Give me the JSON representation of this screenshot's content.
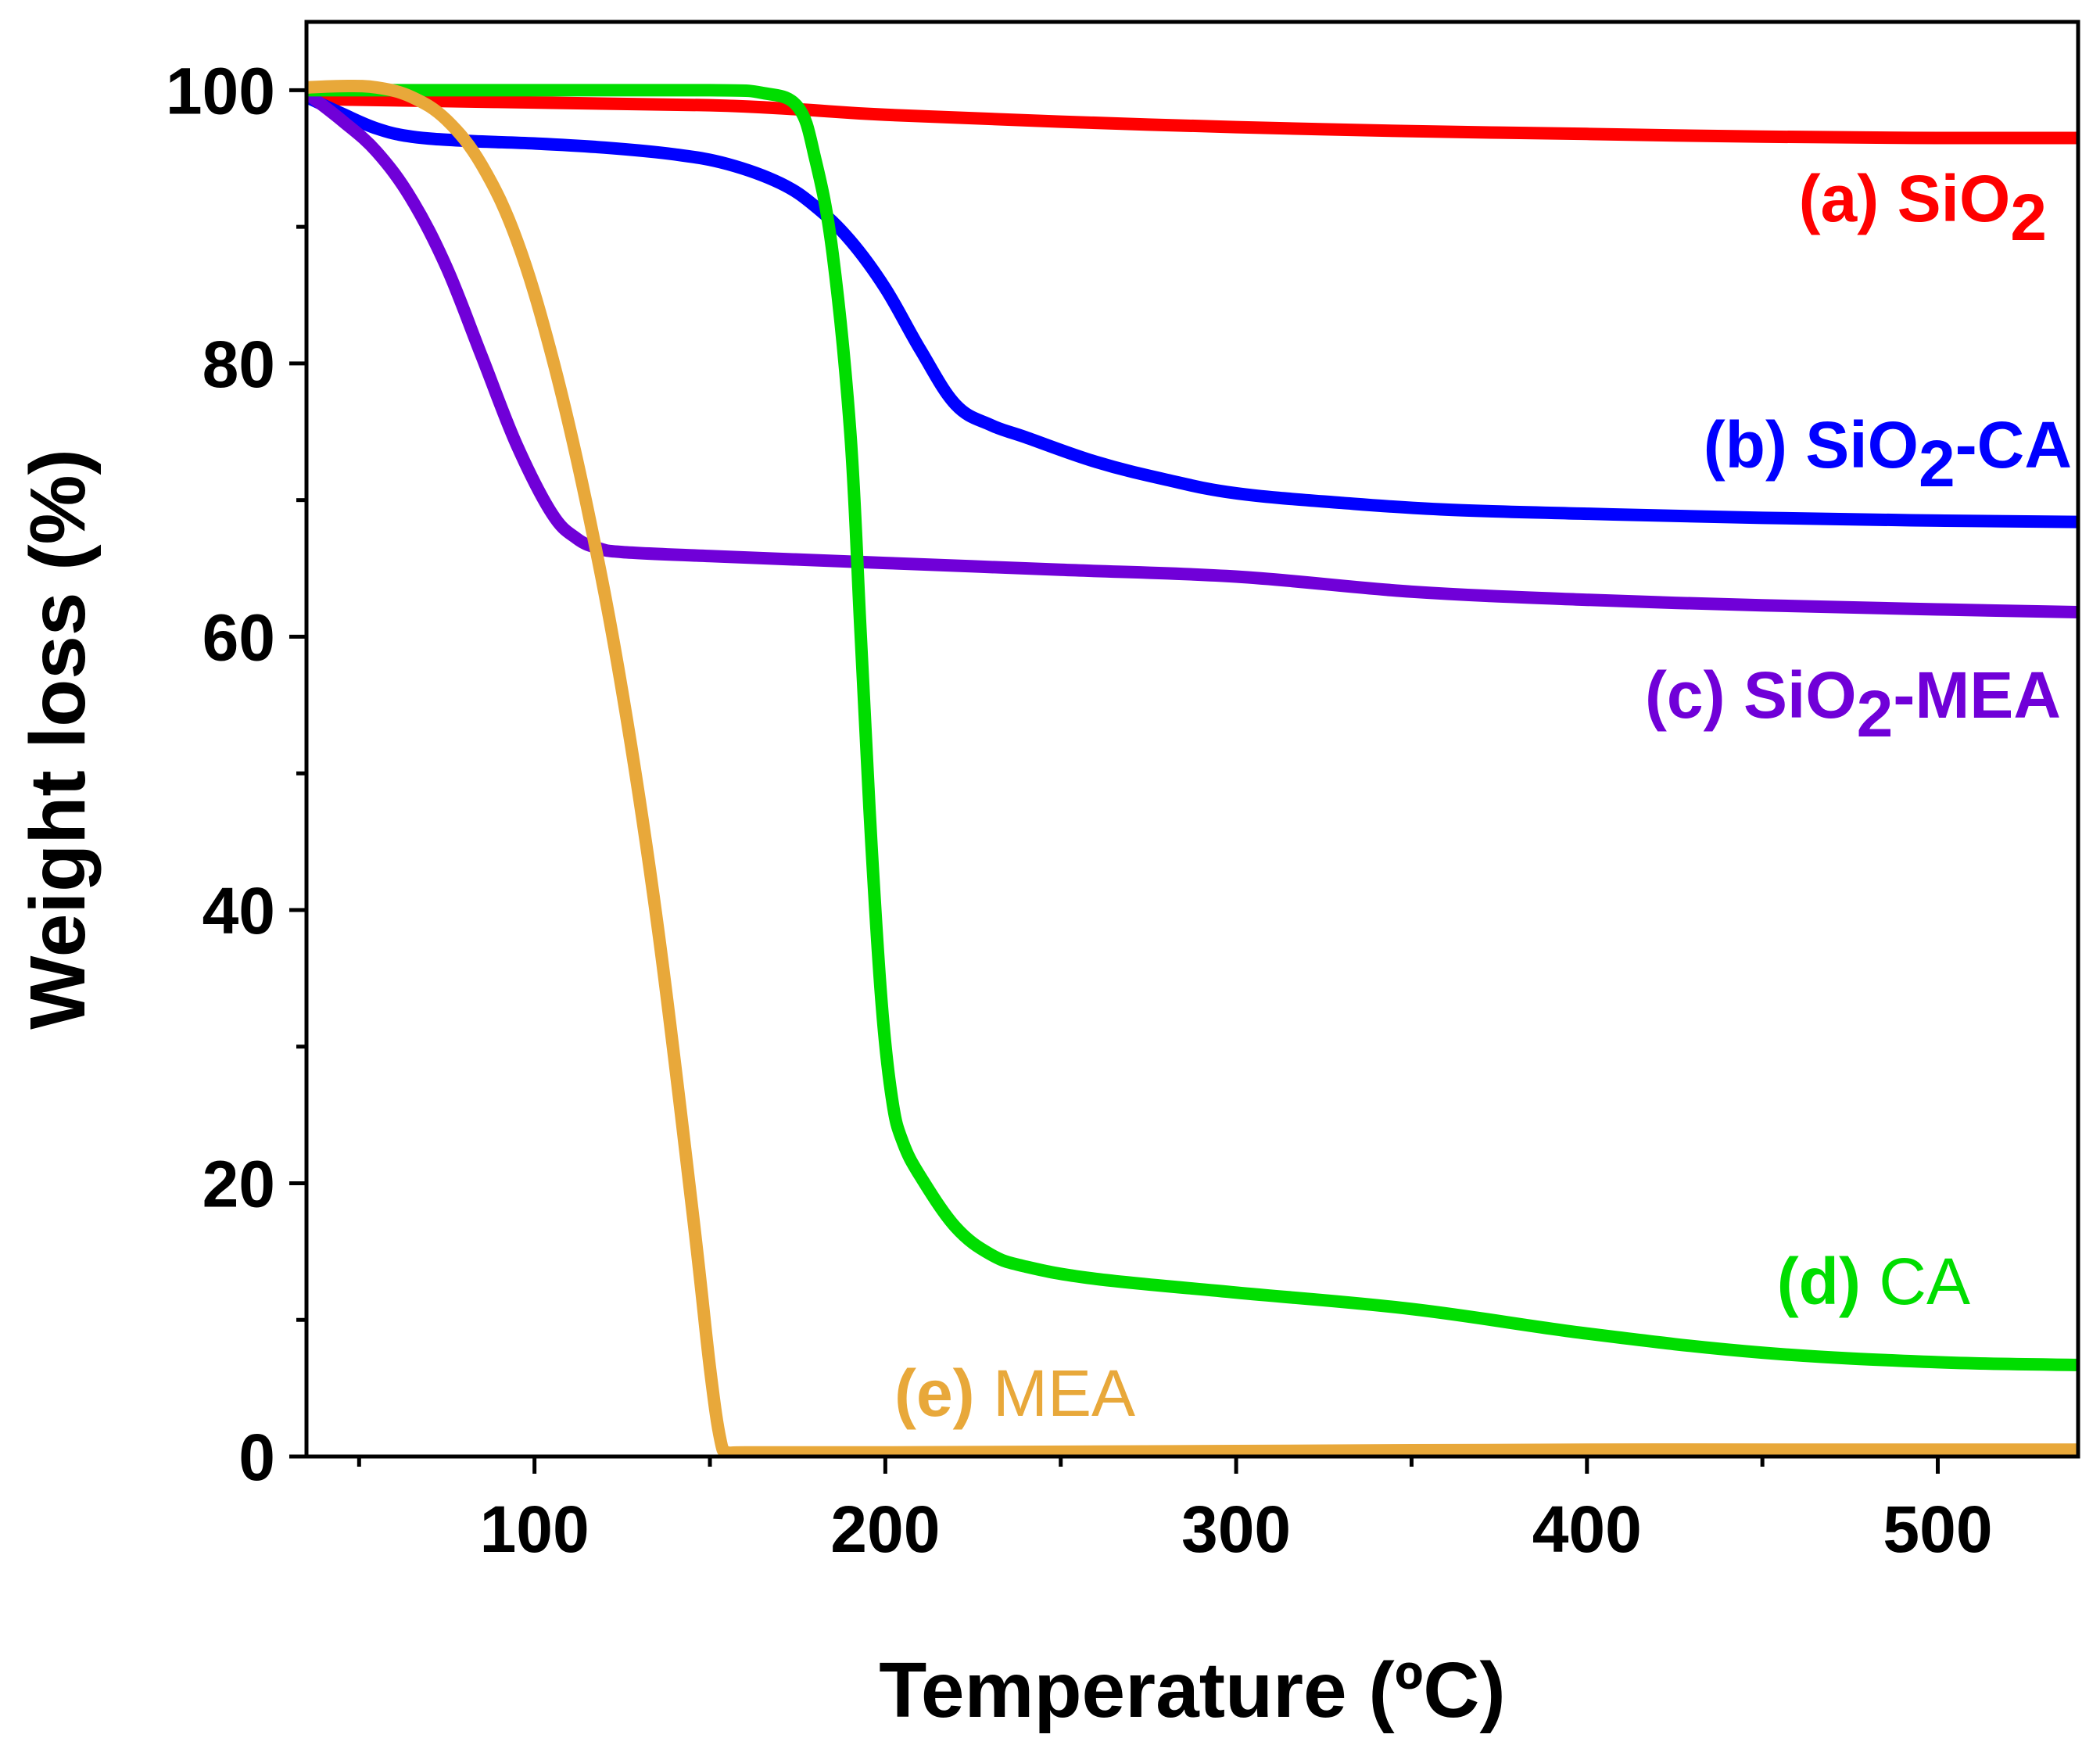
{
  "chart_data": {
    "type": "line",
    "xlabel": "Temperature (ºC)",
    "ylabel": "Weight loss (%)",
    "xlim": [
      35,
      540
    ],
    "ylim": [
      0,
      105
    ],
    "xticks": [
      100,
      200,
      300,
      400,
      500
    ],
    "xtick_labels": [
      "100",
      "200",
      "300",
      "400",
      "500"
    ],
    "xminor": [
      50,
      150,
      250,
      350,
      450
    ],
    "yticks": [
      0,
      20,
      40,
      60,
      80,
      100
    ],
    "ytick_labels": [
      "0",
      "20",
      "40",
      "60",
      "80",
      "100"
    ],
    "yminor": [
      10,
      30,
      50,
      70,
      90
    ],
    "grid": false,
    "series": [
      {
        "name": "SiO2",
        "label_prefix": "(a) ",
        "label_main": "SiO",
        "label_sub": "2",
        "label_suffix": "",
        "color": "#ff0000",
        "x": [
          35,
          50,
          100,
          150,
          175,
          200,
          250,
          300,
          350,
          400,
          450,
          500,
          540
        ],
        "y": [
          99.4,
          99.3,
          99.1,
          98.9,
          98.6,
          98.2,
          97.7,
          97.3,
          97.0,
          96.8,
          96.6,
          96.5,
          96.5
        ]
      },
      {
        "name": "SiO2-CA",
        "label_prefix": "(b) ",
        "label_main": "SiO",
        "label_sub": "2",
        "label_suffix": "-CA",
        "color": "#0000ff",
        "x": [
          35,
          45,
          55,
          65,
          80,
          100,
          120,
          140,
          155,
          170,
          180,
          190,
          200,
          210,
          220,
          230,
          240,
          260,
          280,
          300,
          330,
          360,
          400,
          450,
          500,
          540
        ],
        "y": [
          99.5,
          98.3,
          97.2,
          96.6,
          96.3,
          96.1,
          95.8,
          95.3,
          94.6,
          93.2,
          91.5,
          89.0,
          85.5,
          81.0,
          77.0,
          75.5,
          74.6,
          72.8,
          71.5,
          70.5,
          69.8,
          69.3,
          69.0,
          68.7,
          68.5,
          68.4
        ]
      },
      {
        "name": "SiO2-MEA",
        "label_prefix": "(c) ",
        "label_main": "SiO",
        "label_sub": "2",
        "label_suffix": "-MEA",
        "color": "#7000d8",
        "x": [
          35,
          45,
          55,
          65,
          75,
          85,
          95,
          105,
          112,
          118,
          125,
          150,
          200,
          250,
          300,
          350,
          400,
          450,
          500,
          540
        ],
        "y": [
          99.8,
          97.8,
          95.5,
          92.0,
          87.0,
          80.5,
          74.0,
          69.0,
          67.2,
          66.5,
          66.2,
          65.9,
          65.4,
          64.9,
          64.4,
          63.3,
          62.7,
          62.3,
          62.0,
          61.8
        ]
      },
      {
        "name": "CA",
        "label_prefix": "(d) ",
        "label_main": "CA",
        "label_sub": "",
        "label_suffix": "",
        "color": "#00dd00",
        "x": [
          35,
          100,
          150,
          165,
          175,
          180,
          185,
          190,
          193,
          196,
          199,
          202,
          205,
          210,
          220,
          230,
          240,
          260,
          300,
          350,
          400,
          450,
          500,
          540
        ],
        "y": [
          100,
          100,
          100,
          99.8,
          98.8,
          95.0,
          88.0,
          75.0,
          60.0,
          45.0,
          33.0,
          26.0,
          23.0,
          20.5,
          16.8,
          14.8,
          13.9,
          13.0,
          12.0,
          10.8,
          9.0,
          7.6,
          6.9,
          6.7
        ]
      },
      {
        "name": "MEA",
        "label_prefix": "(e) ",
        "label_main": "MEA",
        "label_sub": "",
        "label_suffix": "",
        "color": "#e8a83a",
        "x": [
          35,
          45,
          55,
          65,
          75,
          85,
          95,
          105,
          115,
          125,
          135,
          145,
          150,
          153,
          155,
          160,
          200,
          300,
          400,
          500,
          540
        ],
        "y": [
          100.2,
          100.3,
          100.2,
          99.5,
          97.8,
          94.5,
          89.0,
          80.5,
          69.5,
          56.0,
          39.0,
          18.0,
          6.5,
          1.2,
          0.3,
          0.3,
          0.3,
          0.4,
          0.5,
          0.5,
          0.5
        ]
      }
    ]
  }
}
